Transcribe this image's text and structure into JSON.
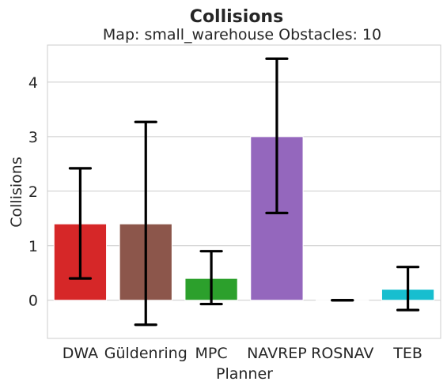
{
  "chart_data": {
    "type": "bar",
    "title": "Collisions",
    "subtitle": "Map: small_warehouse Obstacles: 10",
    "xlabel": "Planner",
    "ylabel": "Collisions",
    "categories": [
      "DWA",
      "Güldenring",
      "MPC",
      "NAVREP",
      "ROSNAV",
      "TEB"
    ],
    "values": [
      1.4,
      1.4,
      0.4,
      3.0,
      0.0,
      0.2
    ],
    "error_low": [
      0.4,
      -0.45,
      -0.07,
      1.6,
      0.0,
      -0.18
    ],
    "error_high": [
      2.42,
      3.27,
      0.9,
      4.43,
      0.0,
      0.61
    ],
    "colors": [
      "#d62728",
      "#8c564b",
      "#2ca02c",
      "#9467bd",
      "#7f7f7f",
      "#17becf"
    ],
    "ylim": [
      -0.7,
      4.68
    ],
    "yticks": [
      0,
      1,
      2,
      3,
      4
    ],
    "grid": true,
    "legend": "none"
  }
}
